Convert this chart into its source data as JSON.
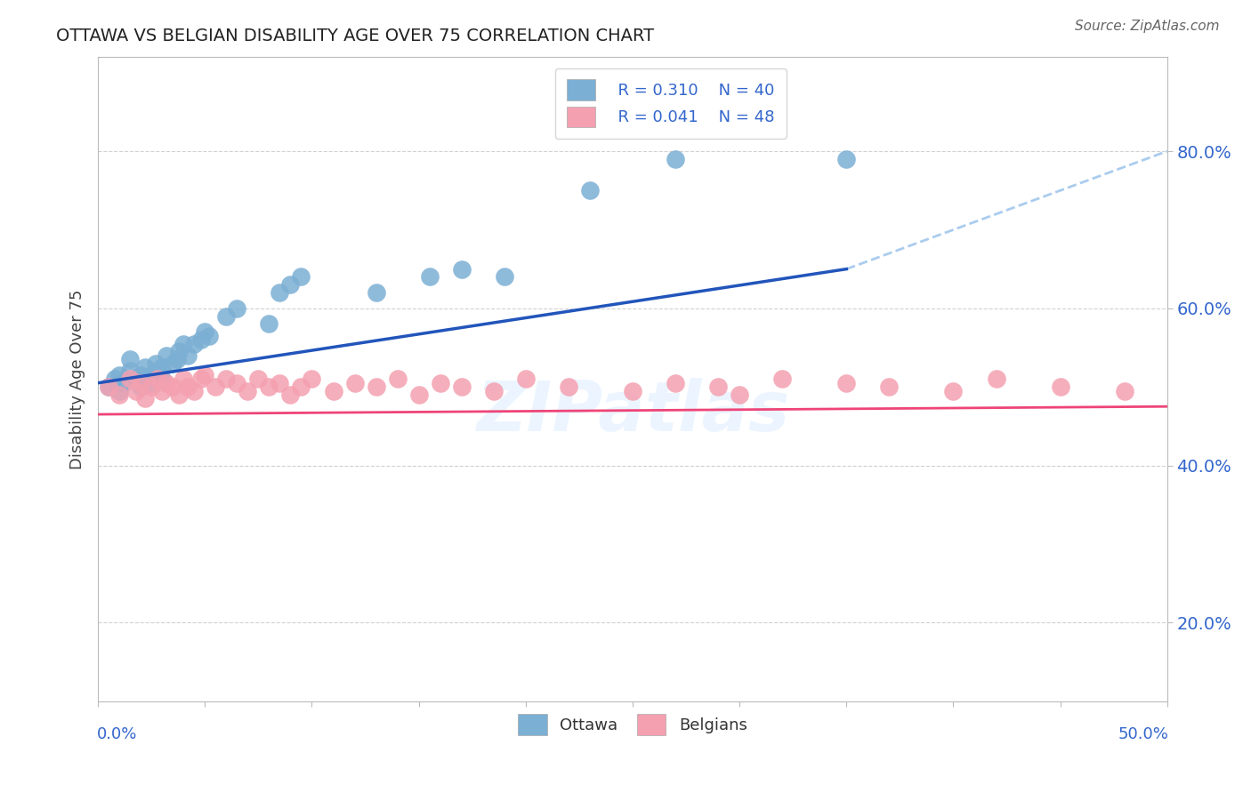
{
  "title": "OTTAWA VS BELGIAN DISABILITY AGE OVER 75 CORRELATION CHART",
  "source": "Source: ZipAtlas.com",
  "ylabel": "Disability Age Over 75",
  "yaxis_labels": [
    "20.0%",
    "40.0%",
    "60.0%",
    "80.0%"
  ],
  "yaxis_values": [
    0.2,
    0.4,
    0.6,
    0.8
  ],
  "xlim": [
    0.0,
    0.5
  ],
  "ylim": [
    0.1,
    0.92
  ],
  "legend_r_ottawa": "R = 0.310",
  "legend_n_ottawa": "N = 40",
  "legend_r_belgians": "R = 0.041",
  "legend_n_belgians": "N = 48",
  "ottawa_color": "#7BAFD4",
  "belgians_color": "#F4A0B0",
  "trendline_ottawa_color": "#2255BB",
  "trendline_belgians_color": "#EE4477",
  "trendline_dashed_color": "#AACCEE",
  "watermark": "ZIPatlas",
  "ottawa_x": [
    0.005,
    0.008,
    0.01,
    0.01,
    0.012,
    0.015,
    0.015,
    0.018,
    0.02,
    0.02,
    0.022,
    0.025,
    0.025,
    0.027,
    0.028,
    0.03,
    0.03,
    0.032,
    0.035,
    0.037,
    0.038,
    0.04,
    0.042,
    0.045,
    0.048,
    0.05,
    0.052,
    0.06,
    0.065,
    0.08,
    0.085,
    0.09,
    0.095,
    0.13,
    0.155,
    0.17,
    0.19,
    0.23,
    0.27,
    0.35
  ],
  "ottawa_y": [
    0.5,
    0.51,
    0.495,
    0.515,
    0.505,
    0.52,
    0.535,
    0.51,
    0.5,
    0.515,
    0.525,
    0.505,
    0.515,
    0.53,
    0.52,
    0.51,
    0.525,
    0.54,
    0.53,
    0.535,
    0.545,
    0.555,
    0.54,
    0.555,
    0.56,
    0.57,
    0.565,
    0.59,
    0.6,
    0.58,
    0.62,
    0.63,
    0.64,
    0.62,
    0.64,
    0.65,
    0.64,
    0.75,
    0.79,
    0.79
  ],
  "belgians_x": [
    0.005,
    0.01,
    0.015,
    0.018,
    0.02,
    0.022,
    0.025,
    0.028,
    0.03,
    0.032,
    0.035,
    0.038,
    0.04,
    0.042,
    0.045,
    0.048,
    0.05,
    0.055,
    0.06,
    0.065,
    0.07,
    0.075,
    0.08,
    0.085,
    0.09,
    0.095,
    0.1,
    0.11,
    0.12,
    0.13,
    0.14,
    0.15,
    0.16,
    0.17,
    0.185,
    0.2,
    0.22,
    0.25,
    0.27,
    0.29,
    0.3,
    0.32,
    0.35,
    0.37,
    0.4,
    0.42,
    0.45,
    0.48
  ],
  "belgians_y": [
    0.5,
    0.49,
    0.51,
    0.495,
    0.505,
    0.485,
    0.5,
    0.51,
    0.495,
    0.505,
    0.5,
    0.49,
    0.51,
    0.5,
    0.495,
    0.51,
    0.515,
    0.5,
    0.51,
    0.505,
    0.495,
    0.51,
    0.5,
    0.505,
    0.49,
    0.5,
    0.51,
    0.495,
    0.505,
    0.5,
    0.51,
    0.49,
    0.505,
    0.5,
    0.495,
    0.51,
    0.5,
    0.495,
    0.505,
    0.5,
    0.49,
    0.51,
    0.505,
    0.5,
    0.495,
    0.51,
    0.5,
    0.495
  ],
  "background_color": "#FFFFFF",
  "grid_color": "#CCCCCC"
}
